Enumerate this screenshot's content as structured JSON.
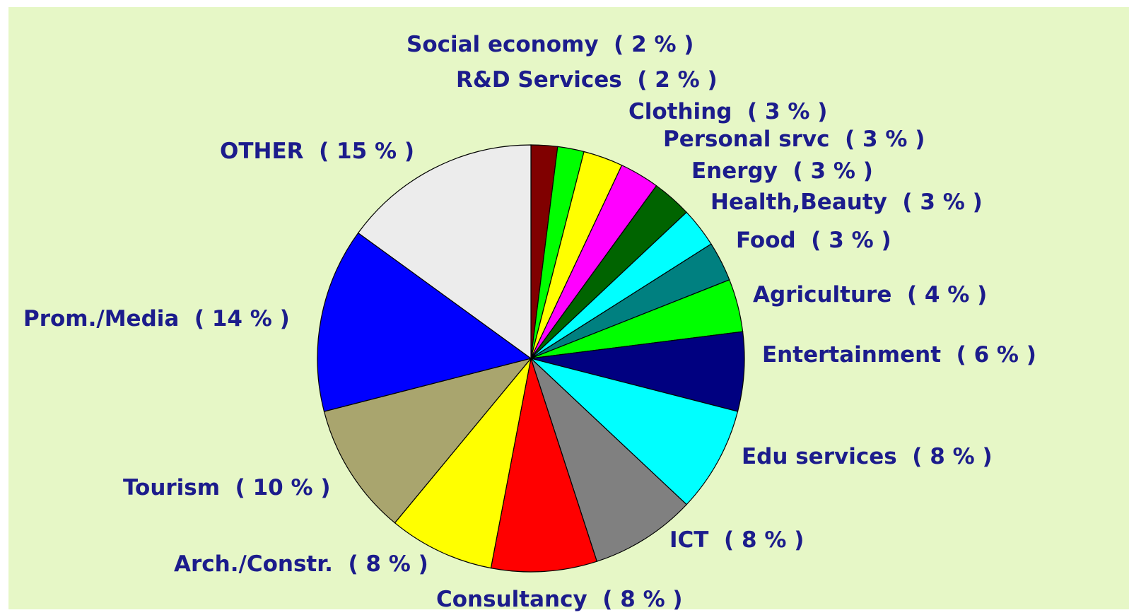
{
  "chart_data": {
    "type": "pie",
    "start_angle_deg": 0,
    "direction": "clockwise",
    "slice_border_color": "#000000",
    "slices": [
      {
        "label": "Social economy  ( 2 % )",
        "name": "Social economy",
        "value": 2,
        "color": "#800000"
      },
      {
        "label": "R&D Services  ( 2 % )",
        "name": "R&D Services",
        "value": 2,
        "color": "#00ff00"
      },
      {
        "label": "Clothing  ( 3 % )",
        "name": "Clothing",
        "value": 3,
        "color": "#ffff00"
      },
      {
        "label": "Personal srvc  ( 3 % )",
        "name": "Personal srvc",
        "value": 3,
        "color": "#ff00ff"
      },
      {
        "label": "Energy  ( 3 % )",
        "name": "Energy",
        "value": 3,
        "color": "#006400"
      },
      {
        "label": "Health,Beauty  ( 3 % )",
        "name": "Health,Beauty",
        "value": 3,
        "color": "#00ffff"
      },
      {
        "label": "Food  ( 3 % )",
        "name": "Food",
        "value": 3,
        "color": "#008080"
      },
      {
        "label": "Agriculture  ( 4 % )",
        "name": "Agriculture",
        "value": 4,
        "color": "#00ff00"
      },
      {
        "label": "Entertainment  ( 6 % )",
        "name": "Entertainment",
        "value": 6,
        "color": "#000080"
      },
      {
        "label": "Edu services  ( 8 % )",
        "name": "Edu services",
        "value": 8,
        "color": "#00ffff"
      },
      {
        "label": "ICT  ( 8 % )",
        "name": "ICT",
        "value": 8,
        "color": "#808080"
      },
      {
        "label": "Consultancy  ( 8 % )",
        "name": "Consultancy",
        "value": 8,
        "color": "#ff0000"
      },
      {
        "label": "Arch./Constr.  ( 8 % )",
        "name": "Arch./Constr.",
        "value": 8,
        "color": "#ffff00"
      },
      {
        "label": "Tourism  ( 10 % )",
        "name": "Tourism",
        "value": 10,
        "color": "#a9a56e"
      },
      {
        "label": "Prom./Media  ( 14 % )",
        "name": "Prom./Media",
        "value": 14,
        "color": "#0000ff"
      },
      {
        "label": "OTHER  ( 15 % )",
        "name": "OTHER",
        "value": 15,
        "color": "#ececec"
      }
    ]
  }
}
